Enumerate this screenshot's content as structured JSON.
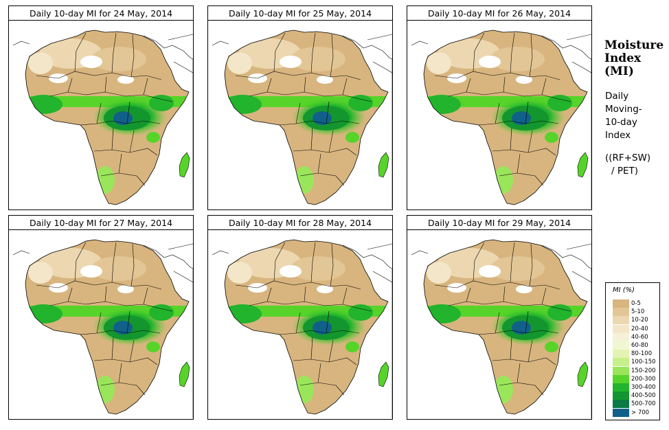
{
  "panels": [
    {
      "title": "Daily 10-day MI for  24 May, 2014"
    },
    {
      "title": "Daily 10-day MI for  25 May, 2014"
    },
    {
      "title": "Daily 10-day MI for  26 May, 2014"
    },
    {
      "title": "Daily 10-day MI for  27 May, 2014"
    },
    {
      "title": "Daily 10-day MI for  28 May, 2014"
    },
    {
      "title": "Daily 10-day MI for  29 May, 2014"
    }
  ],
  "sidebar": {
    "title_lines": [
      "Moisture",
      "Index",
      "(MI)"
    ],
    "description_lines": [
      "Daily",
      "Moving-",
      "10-day",
      "Index"
    ],
    "formula_lines": [
      "((RF+SW)",
      "/ PET)"
    ]
  },
  "legend": {
    "title": "MI (%)",
    "classes": [
      {
        "label": "0-5",
        "color": "#d8b57f"
      },
      {
        "label": "5-10",
        "color": "#e3c695"
      },
      {
        "label": "10-20",
        "color": "#ecd7b0"
      },
      {
        "label": "20-40",
        "color": "#f3e6c9"
      },
      {
        "label": "40-60",
        "color": "#f6f2d9"
      },
      {
        "label": "60-80",
        "color": "#f1f7d2"
      },
      {
        "label": "80-100",
        "color": "#e2f3b4"
      },
      {
        "label": "100-150",
        "color": "#c7f08a"
      },
      {
        "label": "150-200",
        "color": "#9ae65a"
      },
      {
        "label": "200-300",
        "color": "#57d42a"
      },
      {
        "label": "300-400",
        "color": "#22b42c"
      },
      {
        "label": "400-500",
        "color": "#14962e"
      },
      {
        "label": "500-700",
        "color": "#0b7a45"
      },
      {
        "label": "> 700",
        "color": "#11608a"
      }
    ]
  }
}
